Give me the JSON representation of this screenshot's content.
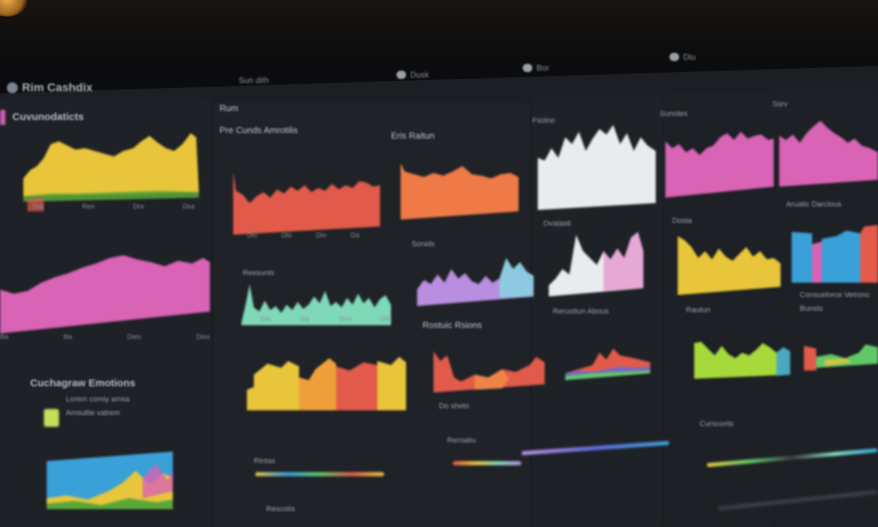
{
  "app": {
    "title": "Rim Cashdix"
  },
  "topbar": {
    "tabs": [
      "Sun dith",
      "Dusk",
      "Bor",
      "Dlu"
    ]
  },
  "left": {
    "header": "Cuvunodaticts",
    "ticks_a": [
      "Dat",
      "Reo",
      "Dre",
      "Dsa"
    ],
    "ticks_b": [
      "Ba",
      "Ba",
      "Dies",
      "Dios"
    ],
    "section": "Cuchagraw Emotions",
    "legend_1": "Lorem comiy amsa",
    "legend_2": "Amsulite vatrem"
  },
  "mid": {
    "header": "Rum",
    "c1_title": "Pre Cunds Amrotilis",
    "c2_title": "Eris Raitun",
    "c3_title": "Ressunts",
    "c4_title": "Sonids",
    "c5_title": "Rostuic Rsions",
    "c6_title": "Do sheto",
    "c7_title": "Reroatiu",
    "c8_title": "Rintas",
    "c9_title": "Rescotis",
    "ticks_c1": [
      "Dlo",
      "Dlo",
      "Dlo",
      "Da"
    ],
    "ticks_c3": [
      "Dla",
      "Da",
      "Dna",
      "Dlo"
    ]
  },
  "right": {
    "r1_title": "Fsolno",
    "r1_sub": "Ovatasti",
    "r1_c3": "Reruotiun Abous",
    "r2_title": "Sunotes",
    "r2_sub": "Dosta",
    "r2_c3": "Rautun",
    "r2_c4": "Curscorits",
    "r3_title": "Ssrv",
    "r3_sub": "Aruatic Darclous",
    "r3_c3": "Consuelorce Vetronc",
    "r3_c4": "Bunsts"
  },
  "colors": {
    "yellow": "#e8c53a",
    "pink": "#d963b5",
    "red": "#e25b4a",
    "orange": "#ef7a48",
    "teal": "#7fd9b8",
    "lilac": "#b98ee0",
    "white": "#e9ecef",
    "blue": "#3aa0d8",
    "lime": "#a6d93a",
    "green": "#5fc96a"
  }
}
